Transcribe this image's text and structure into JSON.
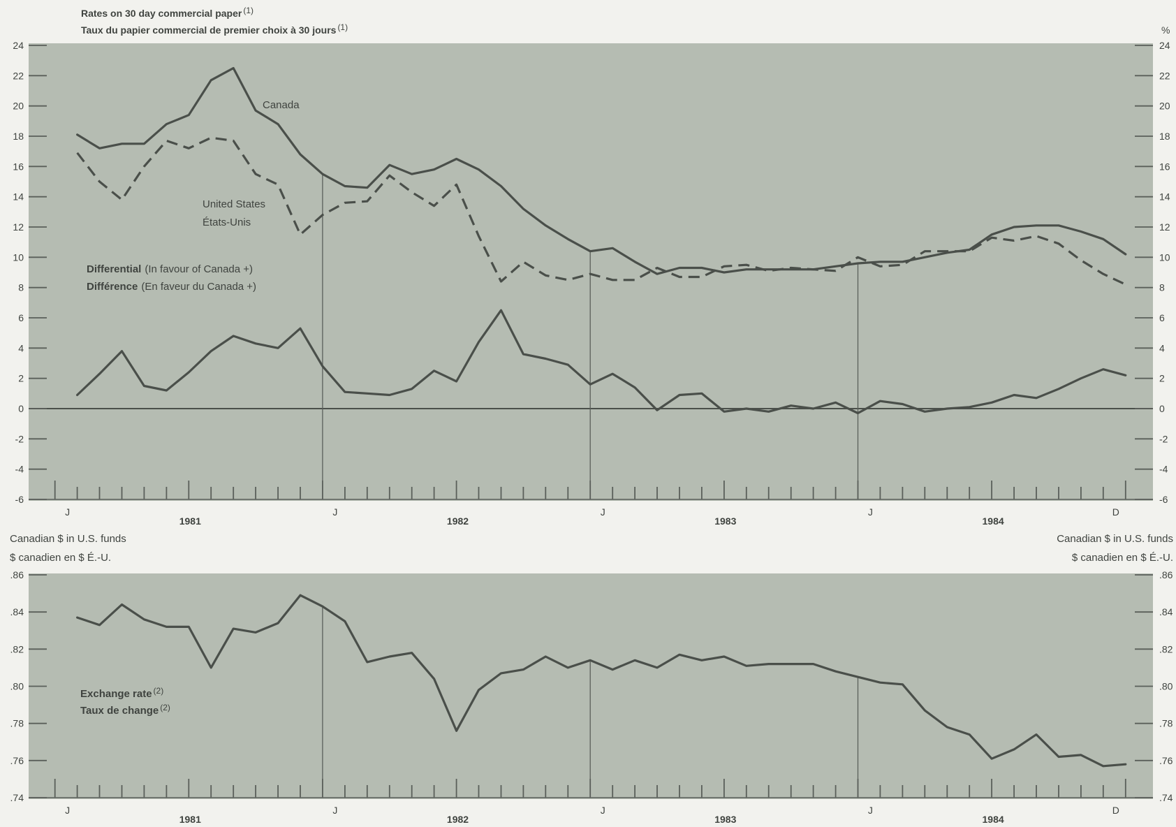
{
  "colors": {
    "page_background": "#f2f2ee",
    "plot_background": "#b5bcb2",
    "series_line": "#4a4f4a",
    "text": "#3f433f",
    "axis": "#5a5f5a"
  },
  "chart_data": [
    {
      "type": "line",
      "title": "Rates on 30 day commercial paper",
      "title_fr": "Taux du papier commercial de premier choix à 30 jours",
      "title_note": "(1)",
      "ylabel": "%",
      "ylim": [
        -6,
        24
      ],
      "y_ticks": [
        24,
        22,
        20,
        18,
        16,
        14,
        12,
        10,
        8,
        6,
        4,
        2,
        0,
        -2,
        -4,
        -6
      ],
      "y_tick_labels": [
        "24",
        "22",
        "20",
        "18",
        "16",
        "14",
        "12",
        "10",
        "8",
        "6",
        "4",
        "2",
        "0",
        "-2",
        "-4",
        "-6"
      ],
      "grid": false,
      "zero_line": true,
      "x": [
        "1981-01",
        "1981-02",
        "1981-03",
        "1981-04",
        "1981-05",
        "1981-06",
        "1981-07",
        "1981-08",
        "1981-09",
        "1981-10",
        "1981-11",
        "1981-12",
        "1982-01",
        "1982-02",
        "1982-03",
        "1982-04",
        "1982-05",
        "1982-06",
        "1982-07",
        "1982-08",
        "1982-09",
        "1982-10",
        "1982-11",
        "1982-12",
        "1983-01",
        "1983-02",
        "1983-03",
        "1983-04",
        "1983-05",
        "1983-06",
        "1983-07",
        "1983-08",
        "1983-09",
        "1983-10",
        "1983-11",
        "1983-12",
        "1984-01",
        "1984-02",
        "1984-03",
        "1984-04",
        "1984-05",
        "1984-06",
        "1984-07",
        "1984-08",
        "1984-09",
        "1984-10",
        "1984-11",
        "1984-12"
      ],
      "x_tick_positions": [
        "1981-01",
        "1982-01",
        "1983-01",
        "1984-01",
        "1984-12"
      ],
      "x_tick_labels": [
        "J",
        "J",
        "J",
        "J",
        "D"
      ],
      "year_labels": [
        "1981",
        "1982",
        "1983",
        "1984"
      ],
      "series": [
        {
          "name": "Canada",
          "line_style": "solid",
          "values": [
            18.1,
            17.2,
            17.5,
            17.5,
            18.8,
            19.4,
            21.7,
            22.5,
            19.7,
            18.8,
            16.8,
            15.5,
            14.7,
            14.6,
            16.1,
            15.5,
            15.8,
            16.5,
            15.8,
            14.7,
            13.2,
            12.1,
            11.2,
            10.4,
            10.6,
            9.7,
            8.9,
            9.3,
            9.3,
            9.0,
            9.2,
            9.2,
            9.2,
            9.2,
            9.4,
            9.6,
            9.7,
            9.7,
            10.0,
            10.3,
            10.5,
            11.5,
            12.0,
            12.1,
            12.1,
            11.7,
            11.2,
            10.2
          ]
        },
        {
          "name": "United States",
          "name_fr": "États-Unis",
          "line_style": "dashed",
          "values": [
            16.9,
            15.0,
            13.8,
            16.0,
            17.7,
            17.2,
            17.9,
            17.7,
            15.5,
            14.8,
            11.5,
            12.8,
            13.6,
            13.7,
            15.4,
            14.3,
            13.4,
            14.8,
            11.4,
            8.4,
            9.7,
            8.8,
            8.5,
            8.9,
            8.5,
            8.5,
            9.3,
            8.7,
            8.7,
            9.4,
            9.5,
            9.1,
            9.3,
            9.2,
            9.1,
            10.0,
            9.4,
            9.5,
            10.4,
            10.4,
            10.4,
            11.3,
            11.1,
            11.4,
            10.9,
            9.8,
            8.9,
            8.2
          ]
        },
        {
          "name": "Differential",
          "description": "(In favour of Canada +)",
          "name_fr": "Différence",
          "description_fr": "(En faveur du Canada +)",
          "line_style": "solid",
          "values": [
            0.9,
            2.3,
            3.8,
            1.5,
            1.2,
            2.4,
            3.8,
            4.8,
            4.3,
            4.0,
            5.3,
            2.8,
            1.1,
            1.0,
            0.9,
            1.3,
            2.5,
            1.8,
            4.4,
            6.5,
            3.6,
            3.3,
            2.9,
            1.6,
            2.3,
            1.4,
            -0.1,
            0.9,
            1.0,
            -0.2,
            0.0,
            -0.2,
            0.2,
            0.0,
            0.4,
            -0.3,
            0.5,
            0.3,
            -0.2,
            0.0,
            0.1,
            0.4,
            0.9,
            0.7,
            1.3,
            2.0,
            2.6,
            2.2
          ]
        }
      ]
    },
    {
      "type": "line",
      "ylabel": "Canadian $ in U.S. funds",
      "ylabel_fr": "$ canadien en $ É.-U.",
      "ylim": [
        0.74,
        0.86
      ],
      "y_ticks": [
        0.86,
        0.84,
        0.82,
        0.8,
        0.78,
        0.76,
        0.74
      ],
      "y_tick_labels": [
        ".86",
        ".84",
        ".82",
        ".80",
        ".78",
        ".76",
        ".74"
      ],
      "grid": false,
      "zero_line": false,
      "x": [
        "1981-01",
        "1981-02",
        "1981-03",
        "1981-04",
        "1981-05",
        "1981-06",
        "1981-07",
        "1981-08",
        "1981-09",
        "1981-10",
        "1981-11",
        "1981-12",
        "1982-01",
        "1982-02",
        "1982-03",
        "1982-04",
        "1982-05",
        "1982-06",
        "1982-07",
        "1982-08",
        "1982-09",
        "1982-10",
        "1982-11",
        "1982-12",
        "1983-01",
        "1983-02",
        "1983-03",
        "1983-04",
        "1983-05",
        "1983-06",
        "1983-07",
        "1983-08",
        "1983-09",
        "1983-10",
        "1983-11",
        "1983-12",
        "1984-01",
        "1984-02",
        "1984-03",
        "1984-04",
        "1984-05",
        "1984-06",
        "1984-07",
        "1984-08",
        "1984-09",
        "1984-10",
        "1984-11",
        "1984-12"
      ],
      "x_tick_positions": [
        "1981-01",
        "1982-01",
        "1983-01",
        "1984-01",
        "1984-12"
      ],
      "x_tick_labels": [
        "J",
        "J",
        "J",
        "J",
        "D"
      ],
      "year_labels": [
        "1981",
        "1982",
        "1983",
        "1984"
      ],
      "series": [
        {
          "name": "Exchange rate",
          "name_fr": "Taux de change",
          "note": "(2)",
          "line_style": "solid",
          "values": [
            0.837,
            0.833,
            0.844,
            0.836,
            0.832,
            0.832,
            0.81,
            0.831,
            0.829,
            0.834,
            0.849,
            0.843,
            0.835,
            0.813,
            0.816,
            0.818,
            0.804,
            0.776,
            0.798,
            0.807,
            0.809,
            0.816,
            0.81,
            0.814,
            0.809,
            0.814,
            0.81,
            0.817,
            0.814,
            0.816,
            0.811,
            0.812,
            0.812,
            0.812,
            0.808,
            0.805,
            0.802,
            0.801,
            0.787,
            0.778,
            0.774,
            0.761,
            0.766,
            0.774,
            0.762,
            0.763,
            0.757,
            0.758
          ]
        }
      ]
    }
  ]
}
